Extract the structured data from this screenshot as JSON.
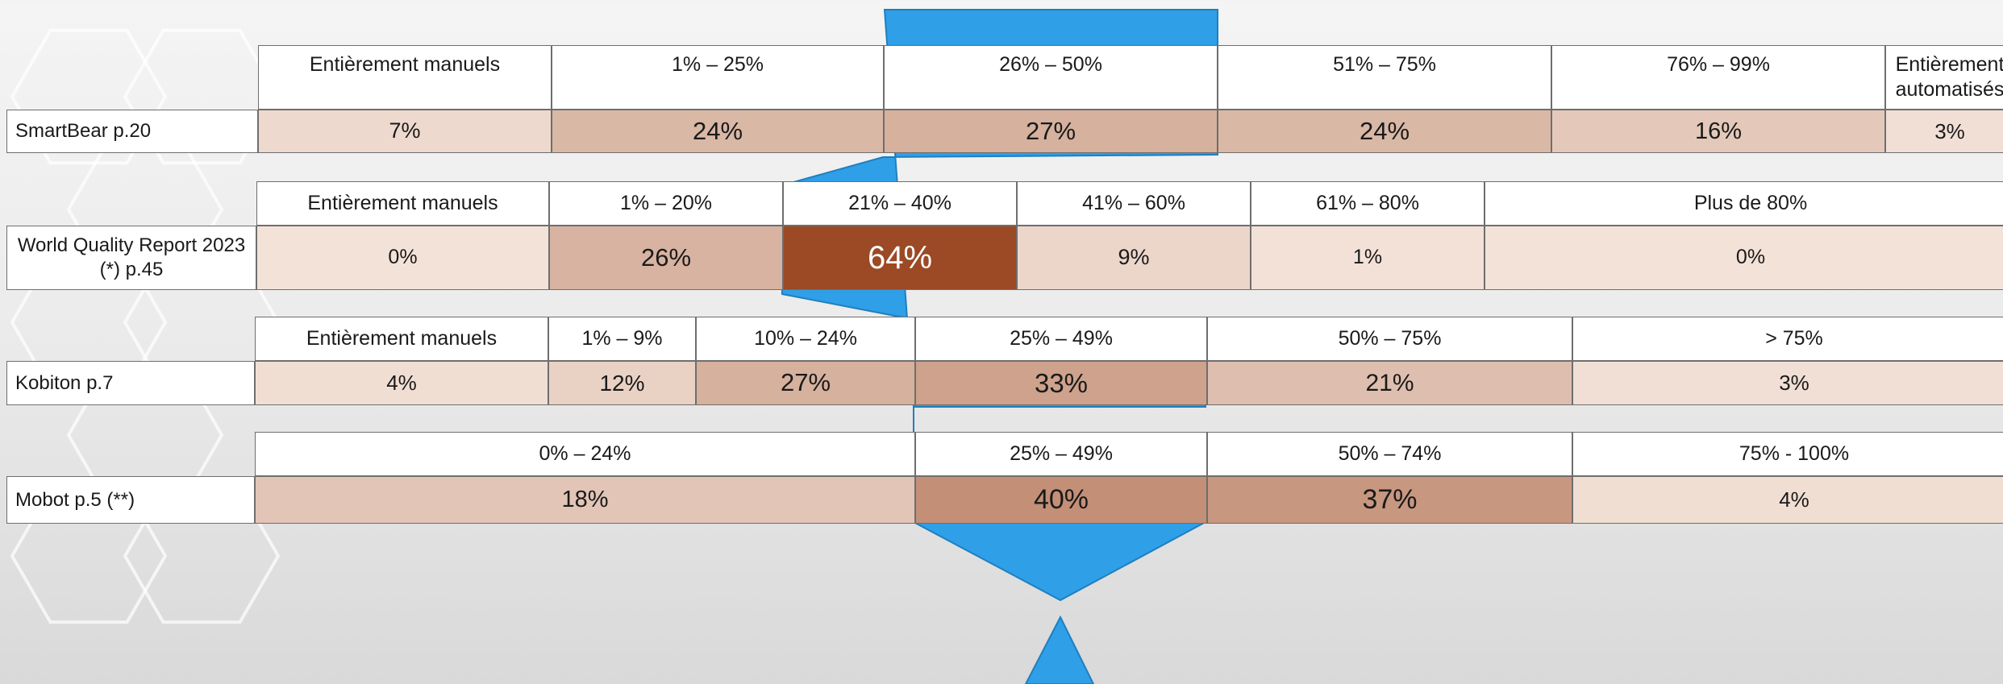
{
  "colors": {
    "arrow": "#2f9fe8",
    "arrow_stroke": "#1f7fbf",
    "heat_min": "#f3e2d8",
    "heat_max": "#9b4a25"
  },
  "chart_data": [
    {
      "type": "table",
      "source": "SmartBear p.20",
      "categories": [
        "Entièrement manuels",
        "1% – 25%",
        "26% – 50%",
        "51% – 75%",
        "76% – 99%",
        "Entièrement automatisés"
      ],
      "values": [
        7,
        24,
        27,
        24,
        16,
        3
      ],
      "labels": [
        "7%",
        "24%",
        "27%",
        "24%",
        "16%",
        "3%"
      ]
    },
    {
      "type": "table",
      "source": "World Quality Report 2023 (*) p.45",
      "categories": [
        "Entièrement manuels",
        "1% – 20%",
        "21% – 40%",
        "41% – 60%",
        "61% – 80%",
        "Plus de 80%"
      ],
      "values": [
        0,
        26,
        64,
        9,
        1,
        0
      ],
      "labels": [
        "0%",
        "26%",
        "64%",
        "9%",
        "1%",
        "0%"
      ]
    },
    {
      "type": "table",
      "source": "Kobiton p.7",
      "categories": [
        "Entièrement manuels",
        "1% – 9%",
        "10% – 24%",
        "25% – 49%",
        "50% – 75%",
        "> 75%"
      ],
      "values": [
        4,
        12,
        27,
        33,
        21,
        3
      ],
      "labels": [
        "4%",
        "12%",
        "27%",
        "33%",
        "21%",
        "3%"
      ]
    },
    {
      "type": "table",
      "source": "Mobot p.5 (**)",
      "categories": [
        "0% – 24%",
        "25% – 49%",
        "50% – 74%",
        "75% - 100%"
      ],
      "values": [
        18,
        40,
        37,
        4
      ],
      "labels": [
        "18%",
        "40%",
        "37%",
        "4%"
      ]
    }
  ]
}
